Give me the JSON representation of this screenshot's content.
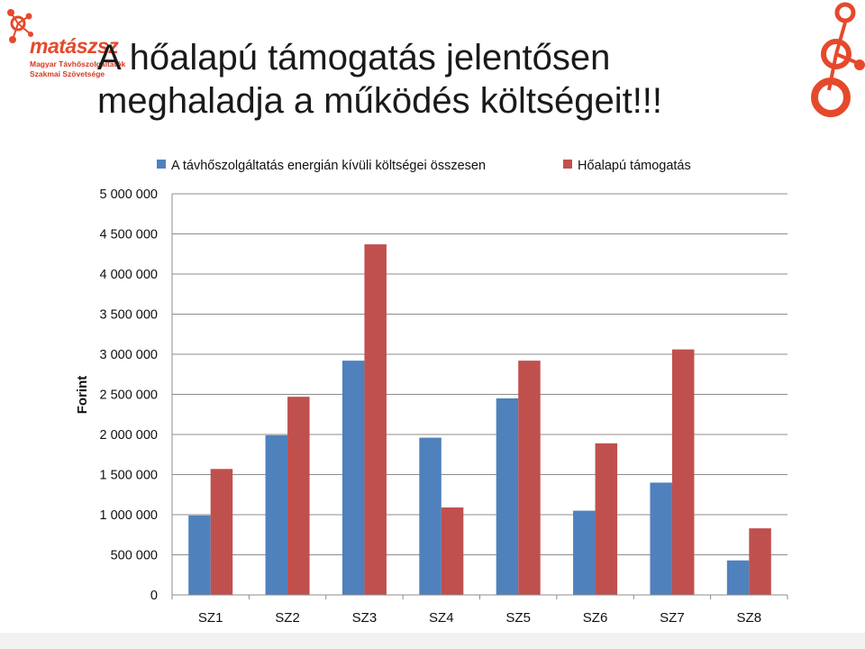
{
  "slide": {
    "title_line1": "A hőalapú támogatás jelentősen",
    "title_line2": "meghaladja a működés költségeit!!!"
  },
  "logo": {
    "word": "matászsz",
    "sub_line1": "Magyar Távhőszolgáltatók",
    "sub_line2": "Szakmai Szövetsége",
    "color": "#e5492c"
  },
  "chart_data": {
    "type": "bar",
    "ylabel": "Forint",
    "xlabel": "",
    "categories": [
      "SZ1",
      "SZ2",
      "SZ3",
      "SZ4",
      "SZ5",
      "SZ6",
      "SZ7",
      "SZ8"
    ],
    "series": [
      {
        "name": "A távhőszolgáltatás energián kívüli költségei összesen",
        "color": "#4f81bd",
        "values": [
          990000,
          1990000,
          2920000,
          1960000,
          2450000,
          1050000,
          1400000,
          430000
        ]
      },
      {
        "name": "Hőalapú támogatás",
        "color": "#c0504d",
        "values": [
          1570000,
          2470000,
          4370000,
          1090000,
          2920000,
          1890000,
          3060000,
          830000
        ]
      }
    ],
    "ylim": [
      0,
      5000000
    ],
    "yticks": [
      0,
      500000,
      1000000,
      1500000,
      2000000,
      2500000,
      3000000,
      3500000,
      4000000,
      4500000,
      5000000
    ],
    "ytick_labels": [
      "0",
      "500 000",
      "1 000 000",
      "1 500 000",
      "2 000 000",
      "2 500 000",
      "3 000 000",
      "3 500 000",
      "4 000 000",
      "4 500 000",
      "5 000 000"
    ],
    "grid": true,
    "legend_position": "top"
  }
}
